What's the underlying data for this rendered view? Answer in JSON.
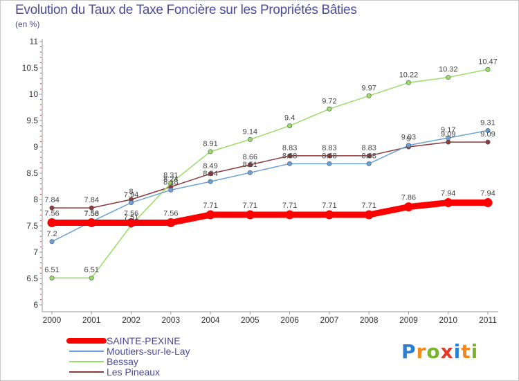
{
  "header": {
    "title": "Evolution du Taux de Taxe Foncière sur les Propriétés Bâties",
    "unit": "(en %)"
  },
  "logo": {
    "text": "Proxiti",
    "letter_colors": [
      "#2a7fd4",
      "#f08a1c",
      "#7ab32e",
      "#e03a2a",
      "#2a7fd4",
      "#f08a1c",
      "#7ab32e"
    ]
  },
  "chart_data": {
    "type": "line",
    "x": [
      "2000",
      "2001",
      "2002",
      "2003",
      "2004",
      "2005",
      "2006",
      "2007",
      "2008",
      "2009",
      "2010",
      "2011"
    ],
    "ylim": [
      6,
      11
    ],
    "yticks": [
      "6",
      "6.5",
      "7",
      "7.5",
      "8",
      "8.5",
      "9",
      "9.5",
      "10",
      "10.5",
      "11"
    ],
    "grid": false,
    "legend_position": "bottom-left",
    "series": [
      {
        "name": "SAINTE-PEXINE",
        "color": "#ff0000",
        "values": [
          7.56,
          7.56,
          7.56,
          7.56,
          7.71,
          7.71,
          7.71,
          7.71,
          7.71,
          7.86,
          7.94,
          7.94
        ],
        "labels": [
          "7.56",
          "7.56",
          "7.56",
          "7.56",
          "7.71",
          "7.71",
          "7.71",
          "7.71",
          "7.71",
          "7.86",
          "7.94",
          "7.94"
        ]
      },
      {
        "name": "Moutiers-sur-le-Lay",
        "color": "#6aa0d8",
        "values": [
          7.2,
          7.58,
          7.94,
          8.18,
          8.34,
          8.51,
          8.68,
          8.68,
          8.68,
          9.03,
          9.17,
          9.31
        ],
        "labels": [
          "7.2",
          "7.58",
          "7.94",
          "8.18",
          "8.34",
          "8.51",
          "8.68",
          "8.68",
          "8.68",
          "9.03",
          "9.17",
          "9.31"
        ]
      },
      {
        "name": "Bessay",
        "color": "#99dd66",
        "values": [
          6.51,
          6.51,
          7.51,
          8.31,
          8.91,
          9.14,
          9.4,
          9.72,
          9.97,
          10.22,
          10.32,
          10.47
        ],
        "labels": [
          "6.51",
          "6.51",
          "7.51",
          "8.31",
          "8.91",
          "9.14",
          "9.4",
          "9.72",
          "9.97",
          "10.22",
          "10.32",
          "10.47"
        ]
      },
      {
        "name": "Les Pineaux",
        "color": "#8b3a3a",
        "values": [
          7.84,
          7.84,
          8,
          8.24,
          8.49,
          8.66,
          8.83,
          8.83,
          8.83,
          9,
          9.09,
          9.09
        ],
        "labels": [
          "7.84",
          "7.84",
          "8",
          "8.24",
          "8.49",
          "8.66",
          "8.83",
          "8.83",
          "8.83",
          "9",
          "9.09",
          "9.09"
        ]
      }
    ]
  }
}
